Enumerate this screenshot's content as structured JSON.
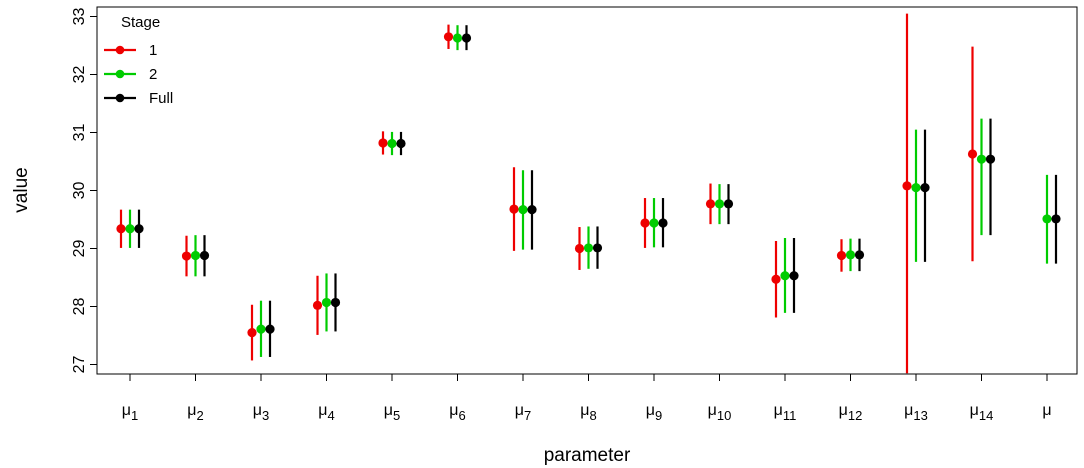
{
  "chart_data": {
    "type": "scatter",
    "subtype": "point-range (estimate with interval)",
    "xlabel": "parameter",
    "ylabel": "value",
    "ylim": [
      26.85,
      33.05
    ],
    "y_ticks": [
      27,
      28,
      29,
      30,
      31,
      32,
      33
    ],
    "grid": false,
    "legend": {
      "title": "Stage",
      "position": "top-left",
      "entries": [
        "1",
        "2",
        "Full"
      ]
    },
    "categories": [
      {
        "base": "μ",
        "sub": "1"
      },
      {
        "base": "μ",
        "sub": "2"
      },
      {
        "base": "μ",
        "sub": "3"
      },
      {
        "base": "μ",
        "sub": "4"
      },
      {
        "base": "μ",
        "sub": "5"
      },
      {
        "base": "μ",
        "sub": "6"
      },
      {
        "base": "μ",
        "sub": "7"
      },
      {
        "base": "μ",
        "sub": "8"
      },
      {
        "base": "μ",
        "sub": "9"
      },
      {
        "base": "μ",
        "sub": "10"
      },
      {
        "base": "μ",
        "sub": "11"
      },
      {
        "base": "μ",
        "sub": "12"
      },
      {
        "base": "μ",
        "sub": "13"
      },
      {
        "base": "μ",
        "sub": "14"
      },
      {
        "base": "μ",
        "sub": ""
      }
    ],
    "series": [
      {
        "name": "1",
        "color": "#ee0000",
        "points": [
          {
            "y": 29.34,
            "lo": 29.01,
            "hi": 29.67
          },
          {
            "y": 28.87,
            "lo": 28.52,
            "hi": 29.22
          },
          {
            "y": 27.55,
            "lo": 27.07,
            "hi": 28.03
          },
          {
            "y": 28.02,
            "lo": 27.51,
            "hi": 28.53
          },
          {
            "y": 30.82,
            "lo": 30.62,
            "hi": 31.02
          },
          {
            "y": 32.65,
            "lo": 32.44,
            "hi": 32.86
          },
          {
            "y": 29.68,
            "lo": 28.96,
            "hi": 30.4
          },
          {
            "y": 29.0,
            "lo": 28.63,
            "hi": 29.37
          },
          {
            "y": 29.44,
            "lo": 29.01,
            "hi": 29.87
          },
          {
            "y": 29.77,
            "lo": 29.42,
            "hi": 30.12
          },
          {
            "y": 28.47,
            "lo": 27.81,
            "hi": 29.13
          },
          {
            "y": 28.88,
            "lo": 28.6,
            "hi": 29.16
          },
          {
            "y": 30.08,
            "lo": 26.85,
            "hi": 33.05
          },
          {
            "y": 30.63,
            "lo": 28.78,
            "hi": 32.48
          },
          null
        ]
      },
      {
        "name": "2",
        "color": "#00cc00",
        "points": [
          {
            "y": 29.34,
            "lo": 29.01,
            "hi": 29.67
          },
          {
            "y": 28.88,
            "lo": 28.52,
            "hi": 29.23
          },
          {
            "y": 27.61,
            "lo": 27.13,
            "hi": 28.1
          },
          {
            "y": 28.07,
            "lo": 27.57,
            "hi": 28.57
          },
          {
            "y": 30.81,
            "lo": 30.61,
            "hi": 31.01
          },
          {
            "y": 32.63,
            "lo": 32.42,
            "hi": 32.85
          },
          {
            "y": 29.67,
            "lo": 28.98,
            "hi": 30.35
          },
          {
            "y": 29.01,
            "lo": 28.65,
            "hi": 29.38
          },
          {
            "y": 29.44,
            "lo": 29.02,
            "hi": 29.87
          },
          {
            "y": 29.77,
            "lo": 29.42,
            "hi": 30.11
          },
          {
            "y": 28.53,
            "lo": 27.89,
            "hi": 29.18
          },
          {
            "y": 28.89,
            "lo": 28.61,
            "hi": 29.17
          },
          {
            "y": 30.05,
            "lo": 28.77,
            "hi": 31.05
          },
          {
            "y": 30.54,
            "lo": 29.23,
            "hi": 31.24
          },
          {
            "y": 29.51,
            "lo": 28.74,
            "hi": 30.27
          }
        ]
      },
      {
        "name": "Full",
        "color": "#000000",
        "points": [
          {
            "y": 29.34,
            "lo": 29.01,
            "hi": 29.67
          },
          {
            "y": 28.88,
            "lo": 28.52,
            "hi": 29.23
          },
          {
            "y": 27.61,
            "lo": 27.13,
            "hi": 28.1
          },
          {
            "y": 28.07,
            "lo": 27.57,
            "hi": 28.57
          },
          {
            "y": 30.81,
            "lo": 30.61,
            "hi": 31.01
          },
          {
            "y": 32.63,
            "lo": 32.42,
            "hi": 32.85
          },
          {
            "y": 29.67,
            "lo": 28.98,
            "hi": 30.35
          },
          {
            "y": 29.01,
            "lo": 28.65,
            "hi": 29.38
          },
          {
            "y": 29.44,
            "lo": 29.02,
            "hi": 29.87
          },
          {
            "y": 29.77,
            "lo": 29.42,
            "hi": 30.11
          },
          {
            "y": 28.53,
            "lo": 27.89,
            "hi": 29.18
          },
          {
            "y": 28.89,
            "lo": 28.61,
            "hi": 29.17
          },
          {
            "y": 30.05,
            "lo": 28.77,
            "hi": 31.05
          },
          {
            "y": 30.54,
            "lo": 29.23,
            "hi": 31.24
          },
          {
            "y": 29.51,
            "lo": 28.74,
            "hi": 30.27
          }
        ]
      }
    ]
  }
}
